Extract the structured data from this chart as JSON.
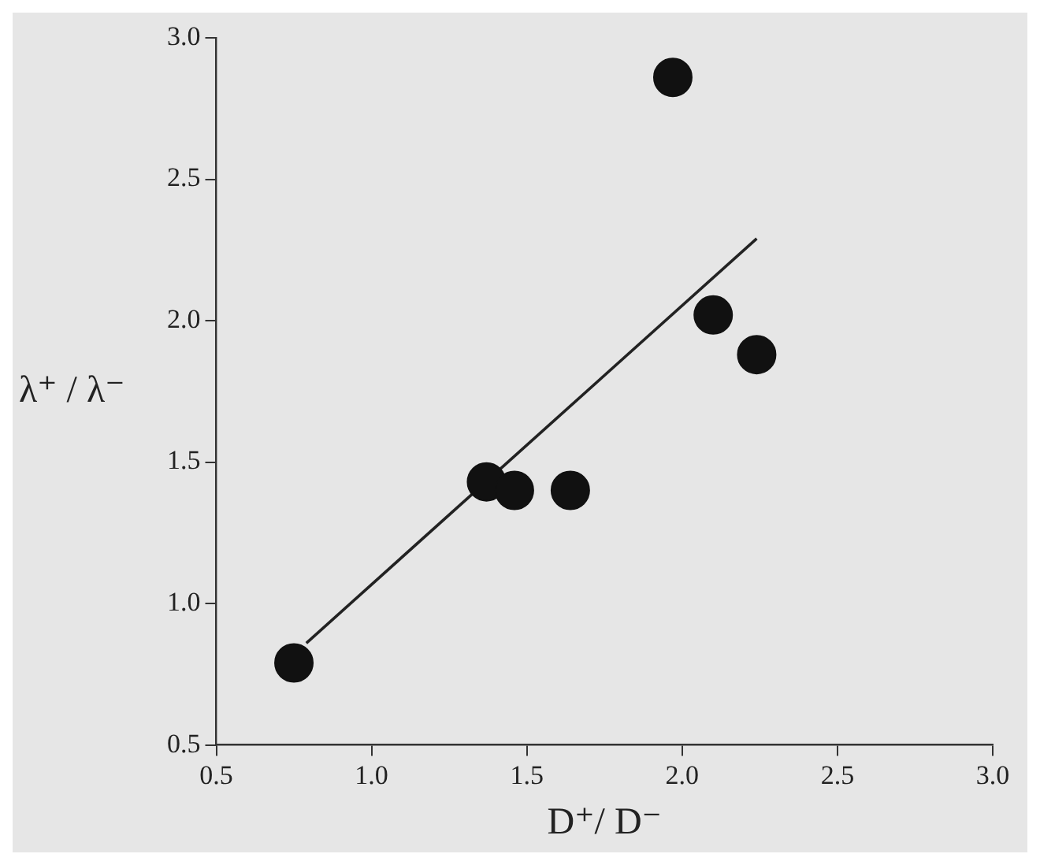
{
  "chart_data": {
    "type": "scatter",
    "xlabel": "D⁺/ D⁻",
    "ylabel": "λ⁺ / λ⁻",
    "xlim": [
      0.5,
      3.0
    ],
    "ylim": [
      0.5,
      3.0
    ],
    "xticks": [
      {
        "value": 0.5,
        "label": "0.5"
      },
      {
        "value": 1,
        "label": "1.0"
      },
      {
        "value": 1.5,
        "label": "1.5"
      },
      {
        "value": 2,
        "label": "2.0"
      },
      {
        "value": 2.5,
        "label": "2.5"
      },
      {
        "value": 3,
        "label": "3.0"
      }
    ],
    "yticks": [
      {
        "value": 0.5,
        "label": "0.5"
      },
      {
        "value": 1,
        "label": "1.0"
      },
      {
        "value": 1.5,
        "label": "1.5"
      },
      {
        "value": 2,
        "label": "2.0"
      },
      {
        "value": 2.5,
        "label": "2.5"
      },
      {
        "value": 3,
        "label": "3.0"
      }
    ],
    "grid": false,
    "legend": false,
    "marker": "circle",
    "series": [
      {
        "color": "#111111",
        "x": [
          0.75,
          1.37,
          1.46,
          1.64,
          1.97,
          2.1,
          2.24
        ],
        "values": [
          0.79,
          1.43,
          1.4,
          1.4,
          2.86,
          2.02,
          1.88
        ]
      },
      {
        "type": "line",
        "color": "#222222",
        "line_style": "solid",
        "marker": "none",
        "x": [
          0.79,
          2.24
        ],
        "values": [
          0.86,
          2.29
        ]
      }
    ]
  }
}
